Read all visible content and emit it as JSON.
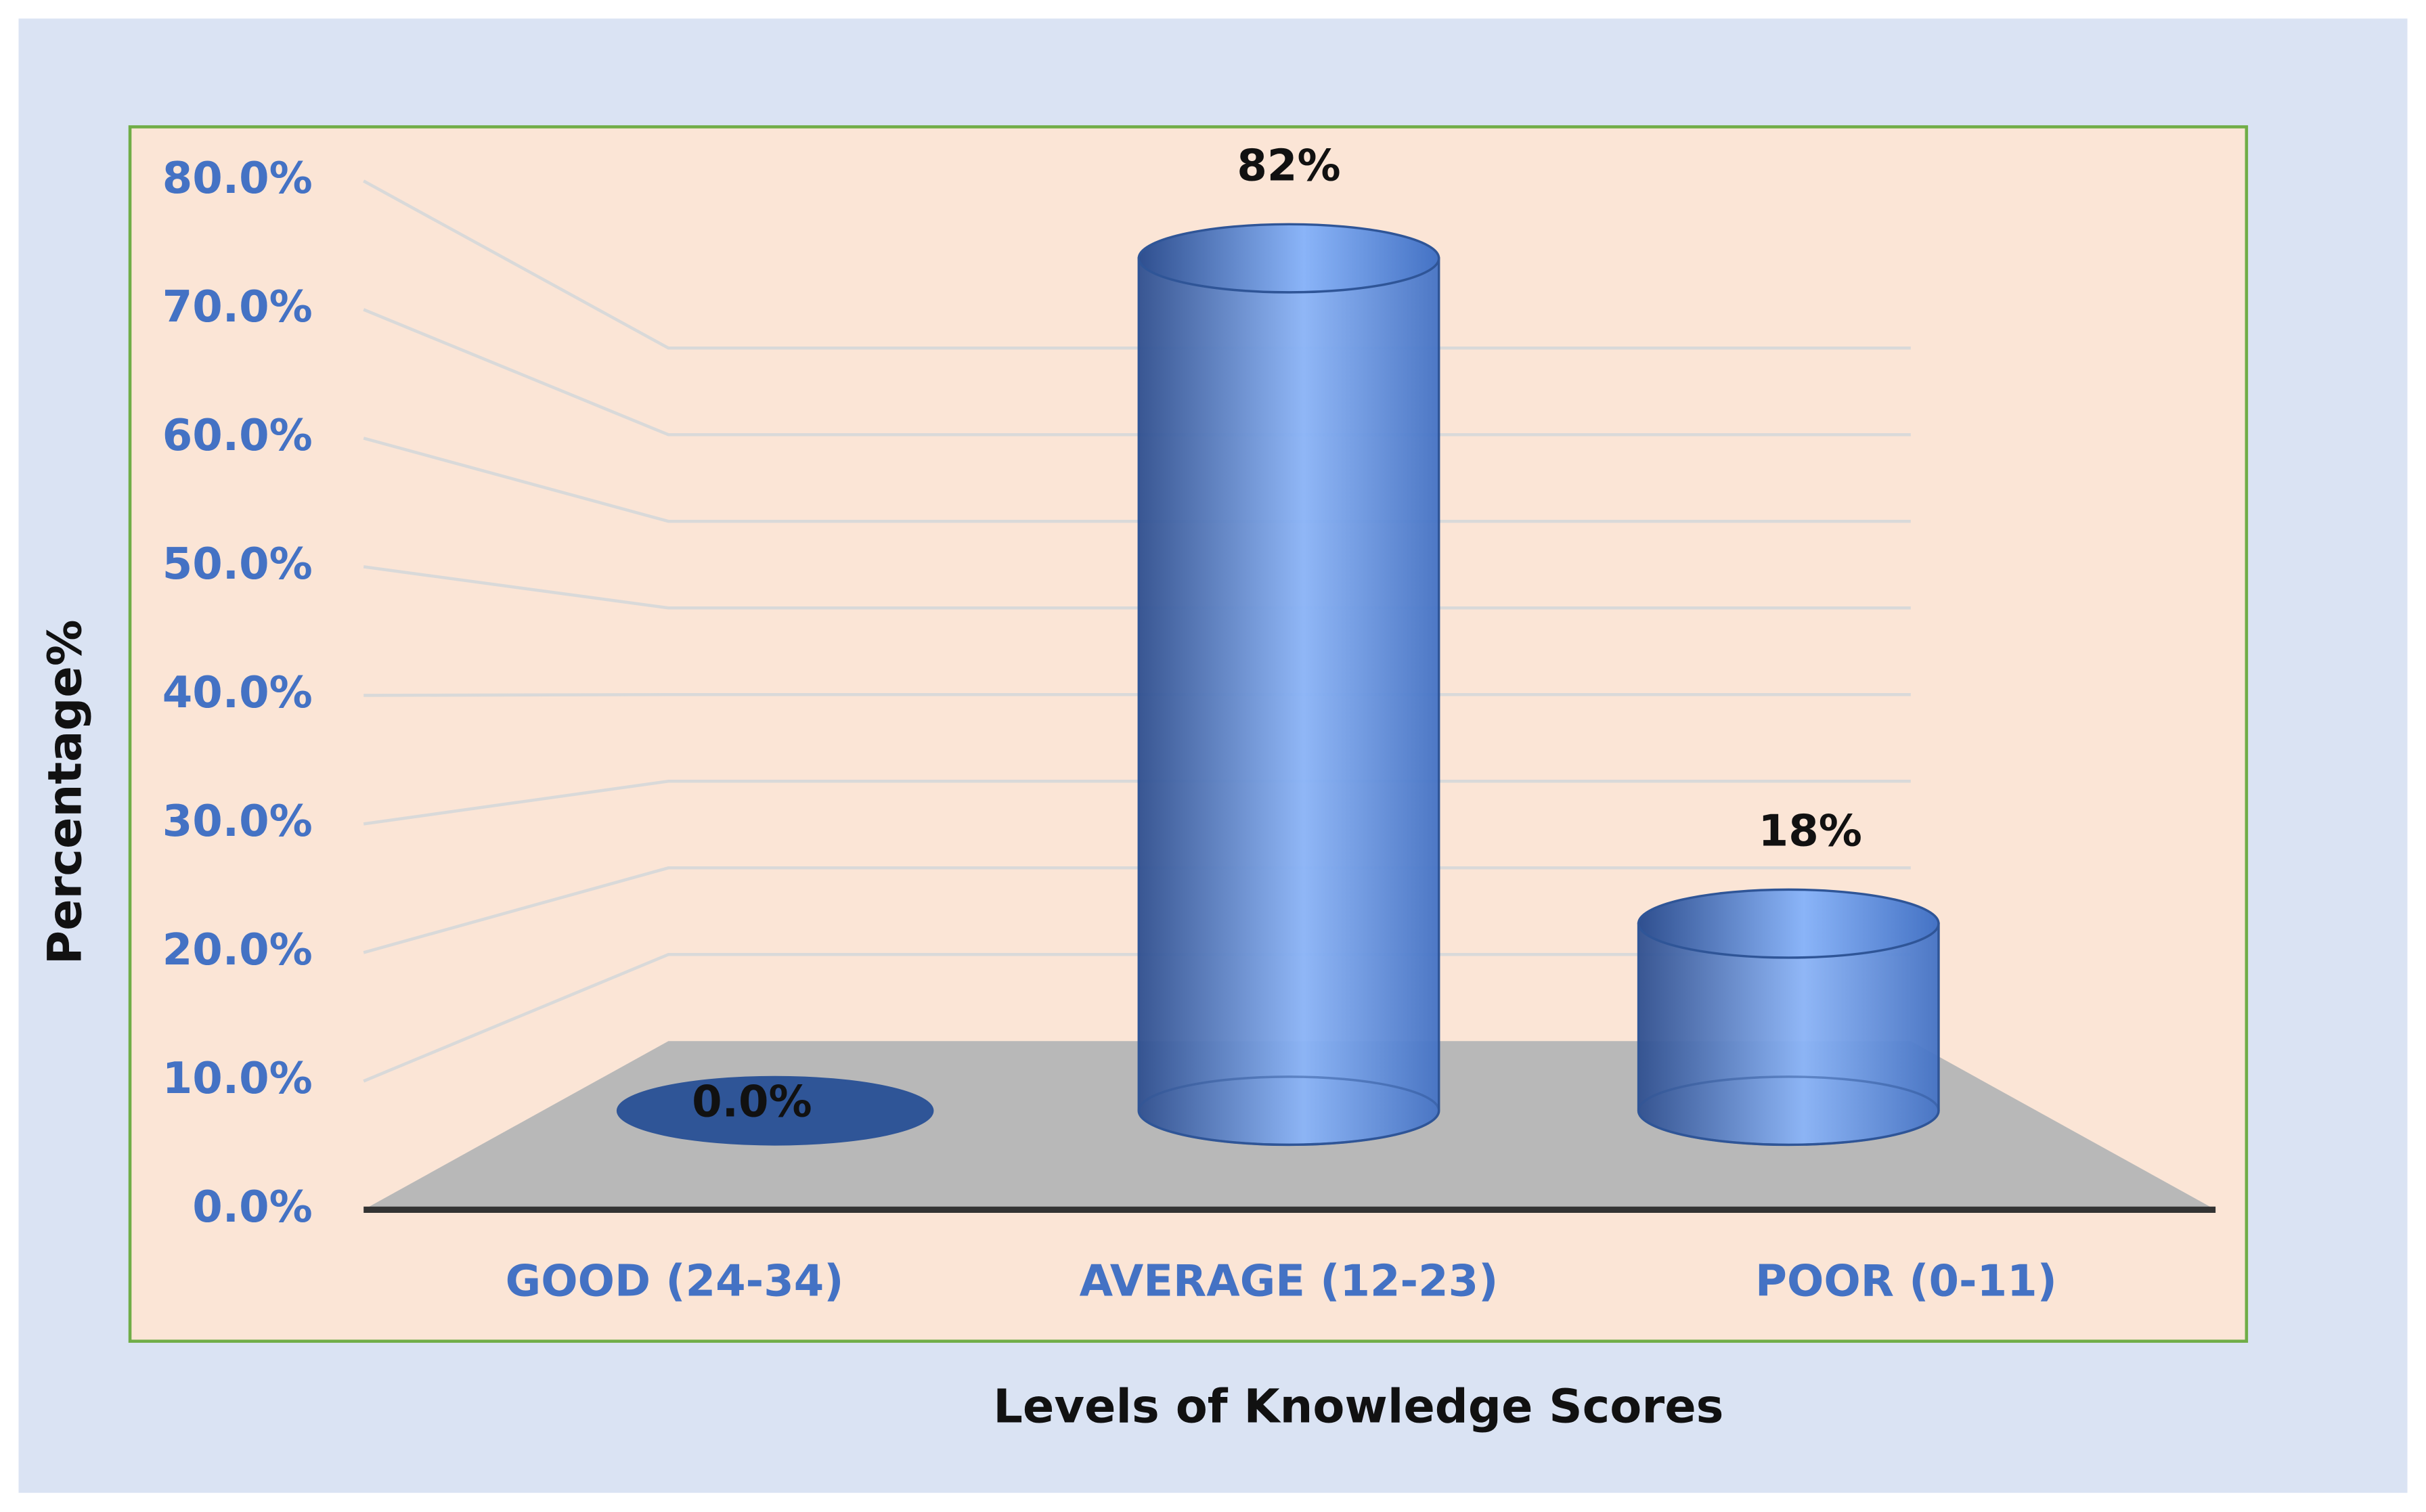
{
  "chart_data": {
    "type": "bar3d",
    "categories": [
      "GOOD (24-34)",
      "AVERAGE (12-23)",
      "POOR (0-11)"
    ],
    "values": [
      0,
      82,
      18
    ],
    "value_labels": [
      "0.0%",
      "82%",
      "18%"
    ],
    "color": "#4472c4",
    "x_label": "Levels of Knowledge Scores",
    "y_label": "Percentage%",
    "ylim": [
      0,
      80
    ],
    "yticks": [
      {
        "value": 0,
        "label": "0.0%"
      },
      {
        "value": 10,
        "label": "10.0%"
      },
      {
        "value": 20,
        "label": "20.0%"
      },
      {
        "value": 30,
        "label": "30.0%"
      },
      {
        "value": 40,
        "label": "40.0%"
      },
      {
        "value": 50,
        "label": "50.0%"
      },
      {
        "value": 60,
        "label": "60.0%"
      },
      {
        "value": 70,
        "label": "70.0%"
      },
      {
        "value": 80,
        "label": "80.0%"
      }
    ],
    "grid": true
  }
}
